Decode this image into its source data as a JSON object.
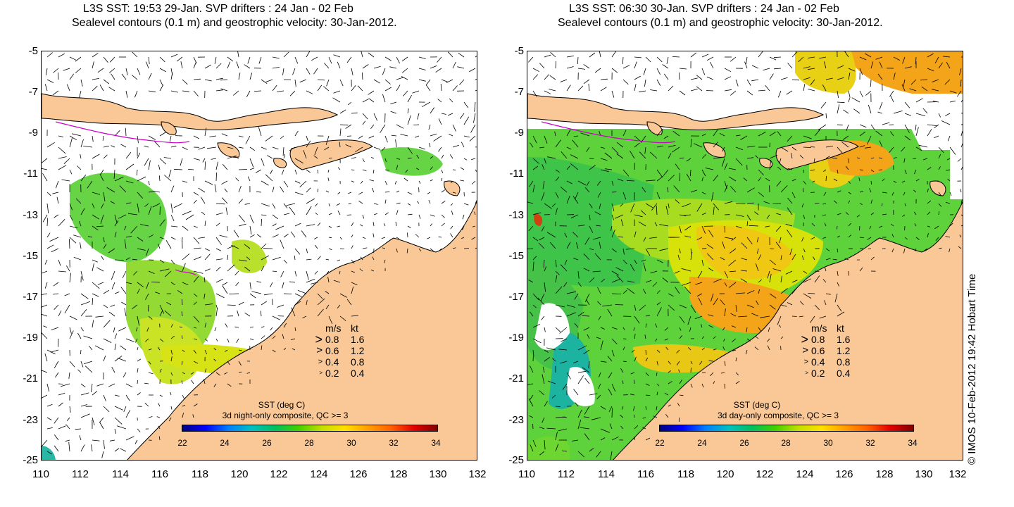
{
  "panels": [
    {
      "title_line1": "L3S SST: 19:53 29-Jan. SVP drifters : 24 Jan - 02 Feb",
      "title_line2": "Sealevel contours (0.1 m) and geostrophic velocity: 30-Jan-2012.",
      "colorbar_title": "SST (deg C)",
      "colorbar_subtitle": "3d night-only composite, QC >= 3",
      "sst_coverage": "sparse"
    },
    {
      "title_line1": "L3S SST: 06:30 30-Jan. SVP drifters : 24 Jan - 02 Feb",
      "title_line2": "Sealevel contours (0.1 m) and geostrophic velocity: 30-Jan-2012.",
      "colorbar_title": "SST (deg C)",
      "colorbar_subtitle": "3d day-only composite, QC >= 3",
      "sst_coverage": "dense"
    }
  ],
  "y_ticks": [
    "-5",
    "-7",
    "-9",
    "-11",
    "-13",
    "-15",
    "-17",
    "-19",
    "-21",
    "-23",
    "-25"
  ],
  "x_ticks": [
    "110",
    "112",
    "114",
    "116",
    "118",
    "120",
    "122",
    "124",
    "126",
    "128",
    "130",
    "132"
  ],
  "colorbar_ticks": [
    "22",
    "24",
    "26",
    "28",
    "30",
    "32",
    "34"
  ],
  "legend": {
    "header_ms": "m/s",
    "header_kt": "kt",
    "rows": [
      {
        "ms": "0.8",
        "kt": "1.6"
      },
      {
        "ms": "0.6",
        "kt": "1.2"
      },
      {
        "ms": "0.4",
        "kt": "0.8"
      },
      {
        "ms": "0.2",
        "kt": "0.4"
      }
    ]
  },
  "credit": "© IMOS 10-Feb-2012 19:42 Hobart Time",
  "colors": {
    "land": "#f9c896",
    "coast": "#000000",
    "sst_green": "#5ed23a",
    "sst_yellow": "#d6e20a",
    "sst_orange": "#f3a418",
    "sst_cyan": "#1cb4a0",
    "drifter": "#cc00cc"
  },
  "map_extent": {
    "lon": [
      110,
      132
    ],
    "lat": [
      -25,
      -5
    ]
  }
}
